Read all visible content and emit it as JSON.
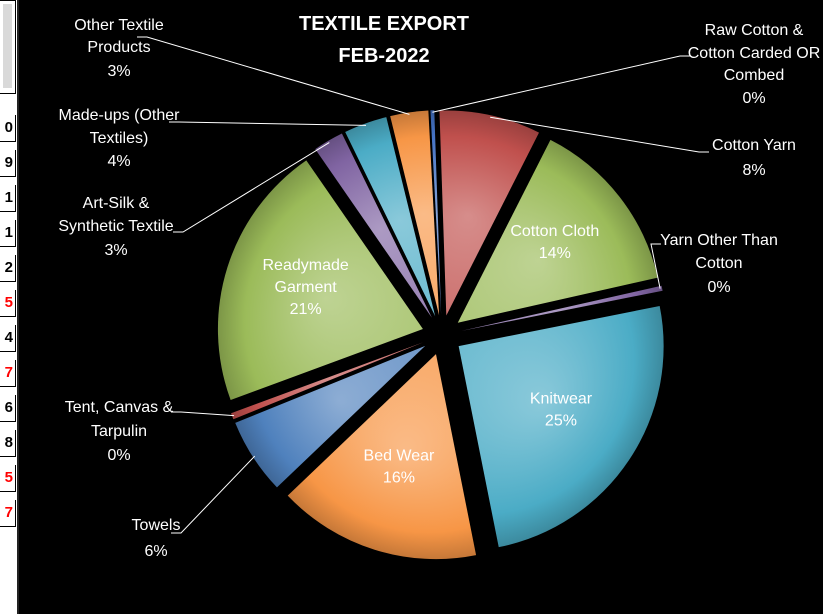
{
  "strip": {
    "cells": [
      {
        "text": "0",
        "color": "#000000"
      },
      {
        "text": "9",
        "color": "#000000"
      },
      {
        "text": "1",
        "color": "#000000"
      },
      {
        "text": "1",
        "color": "#000000"
      },
      {
        "text": "2",
        "color": "#000000"
      },
      {
        "text": "5",
        "color": "#ff0000"
      },
      {
        "text": "4",
        "color": "#000000"
      },
      {
        "text": "7",
        "color": "#ff0000"
      },
      {
        "text": "6",
        "color": "#000000"
      },
      {
        "text": "8",
        "color": "#000000"
      },
      {
        "text": "5",
        "color": "#ff0000"
      },
      {
        "text": "7",
        "color": "#ff0000"
      }
    ]
  },
  "chart_data": {
    "type": "pie",
    "title": "TEXTILE EXPORT",
    "subtitle": "FEB-2022",
    "exploded": true,
    "start_angle_deg": -3,
    "slices": [
      {
        "label": "Raw Cotton & Cotton Carded OR Combed",
        "percent_label": "0%",
        "value": 0.3,
        "color": "#4472c4",
        "label_inside": false
      },
      {
        "label": "Cotton Yarn",
        "percent_label": "8%",
        "value": 8,
        "color": "#c0504d",
        "label_inside": false
      },
      {
        "label": "Cotton Cloth",
        "percent_label": "14%",
        "value": 14,
        "color": "#9bbb59",
        "label_inside": true
      },
      {
        "label": "Yarn Other Than Cotton",
        "percent_label": "0%",
        "value": 0.4,
        "color": "#8064a2",
        "label_inside": false
      },
      {
        "label": "Knitwear",
        "percent_label": "25%",
        "value": 25,
        "color": "#4bacc6",
        "label_inside": true
      },
      {
        "label": "Bed Wear",
        "percent_label": "16%",
        "value": 16,
        "color": "#f79646",
        "label_inside": true
      },
      {
        "label": "Towels",
        "percent_label": "6%",
        "value": 6,
        "color": "#4f81bd",
        "label_inside": false
      },
      {
        "label": "Tent, Canvas & Tarpulin",
        "percent_label": "0%",
        "value": 0.5,
        "color": "#c0504d",
        "label_inside": false
      },
      {
        "label": "Readymade Garment",
        "percent_label": "21%",
        "value": 21,
        "color": "#9bbb59",
        "label_inside": true
      },
      {
        "label": "Art-Silk & Synthetic Textile",
        "percent_label": "3%",
        "value": 2.4,
        "color": "#8064a2",
        "label_inside": false
      },
      {
        "label": "Made-ups (Other Textiles)",
        "percent_label": "4%",
        "value": 3.4,
        "color": "#4bacc6",
        "label_inside": false
      },
      {
        "label": "Other Textile Products",
        "percent_label": "3%",
        "value": 3.0,
        "color": "#f79646",
        "label_inside": false
      }
    ]
  }
}
